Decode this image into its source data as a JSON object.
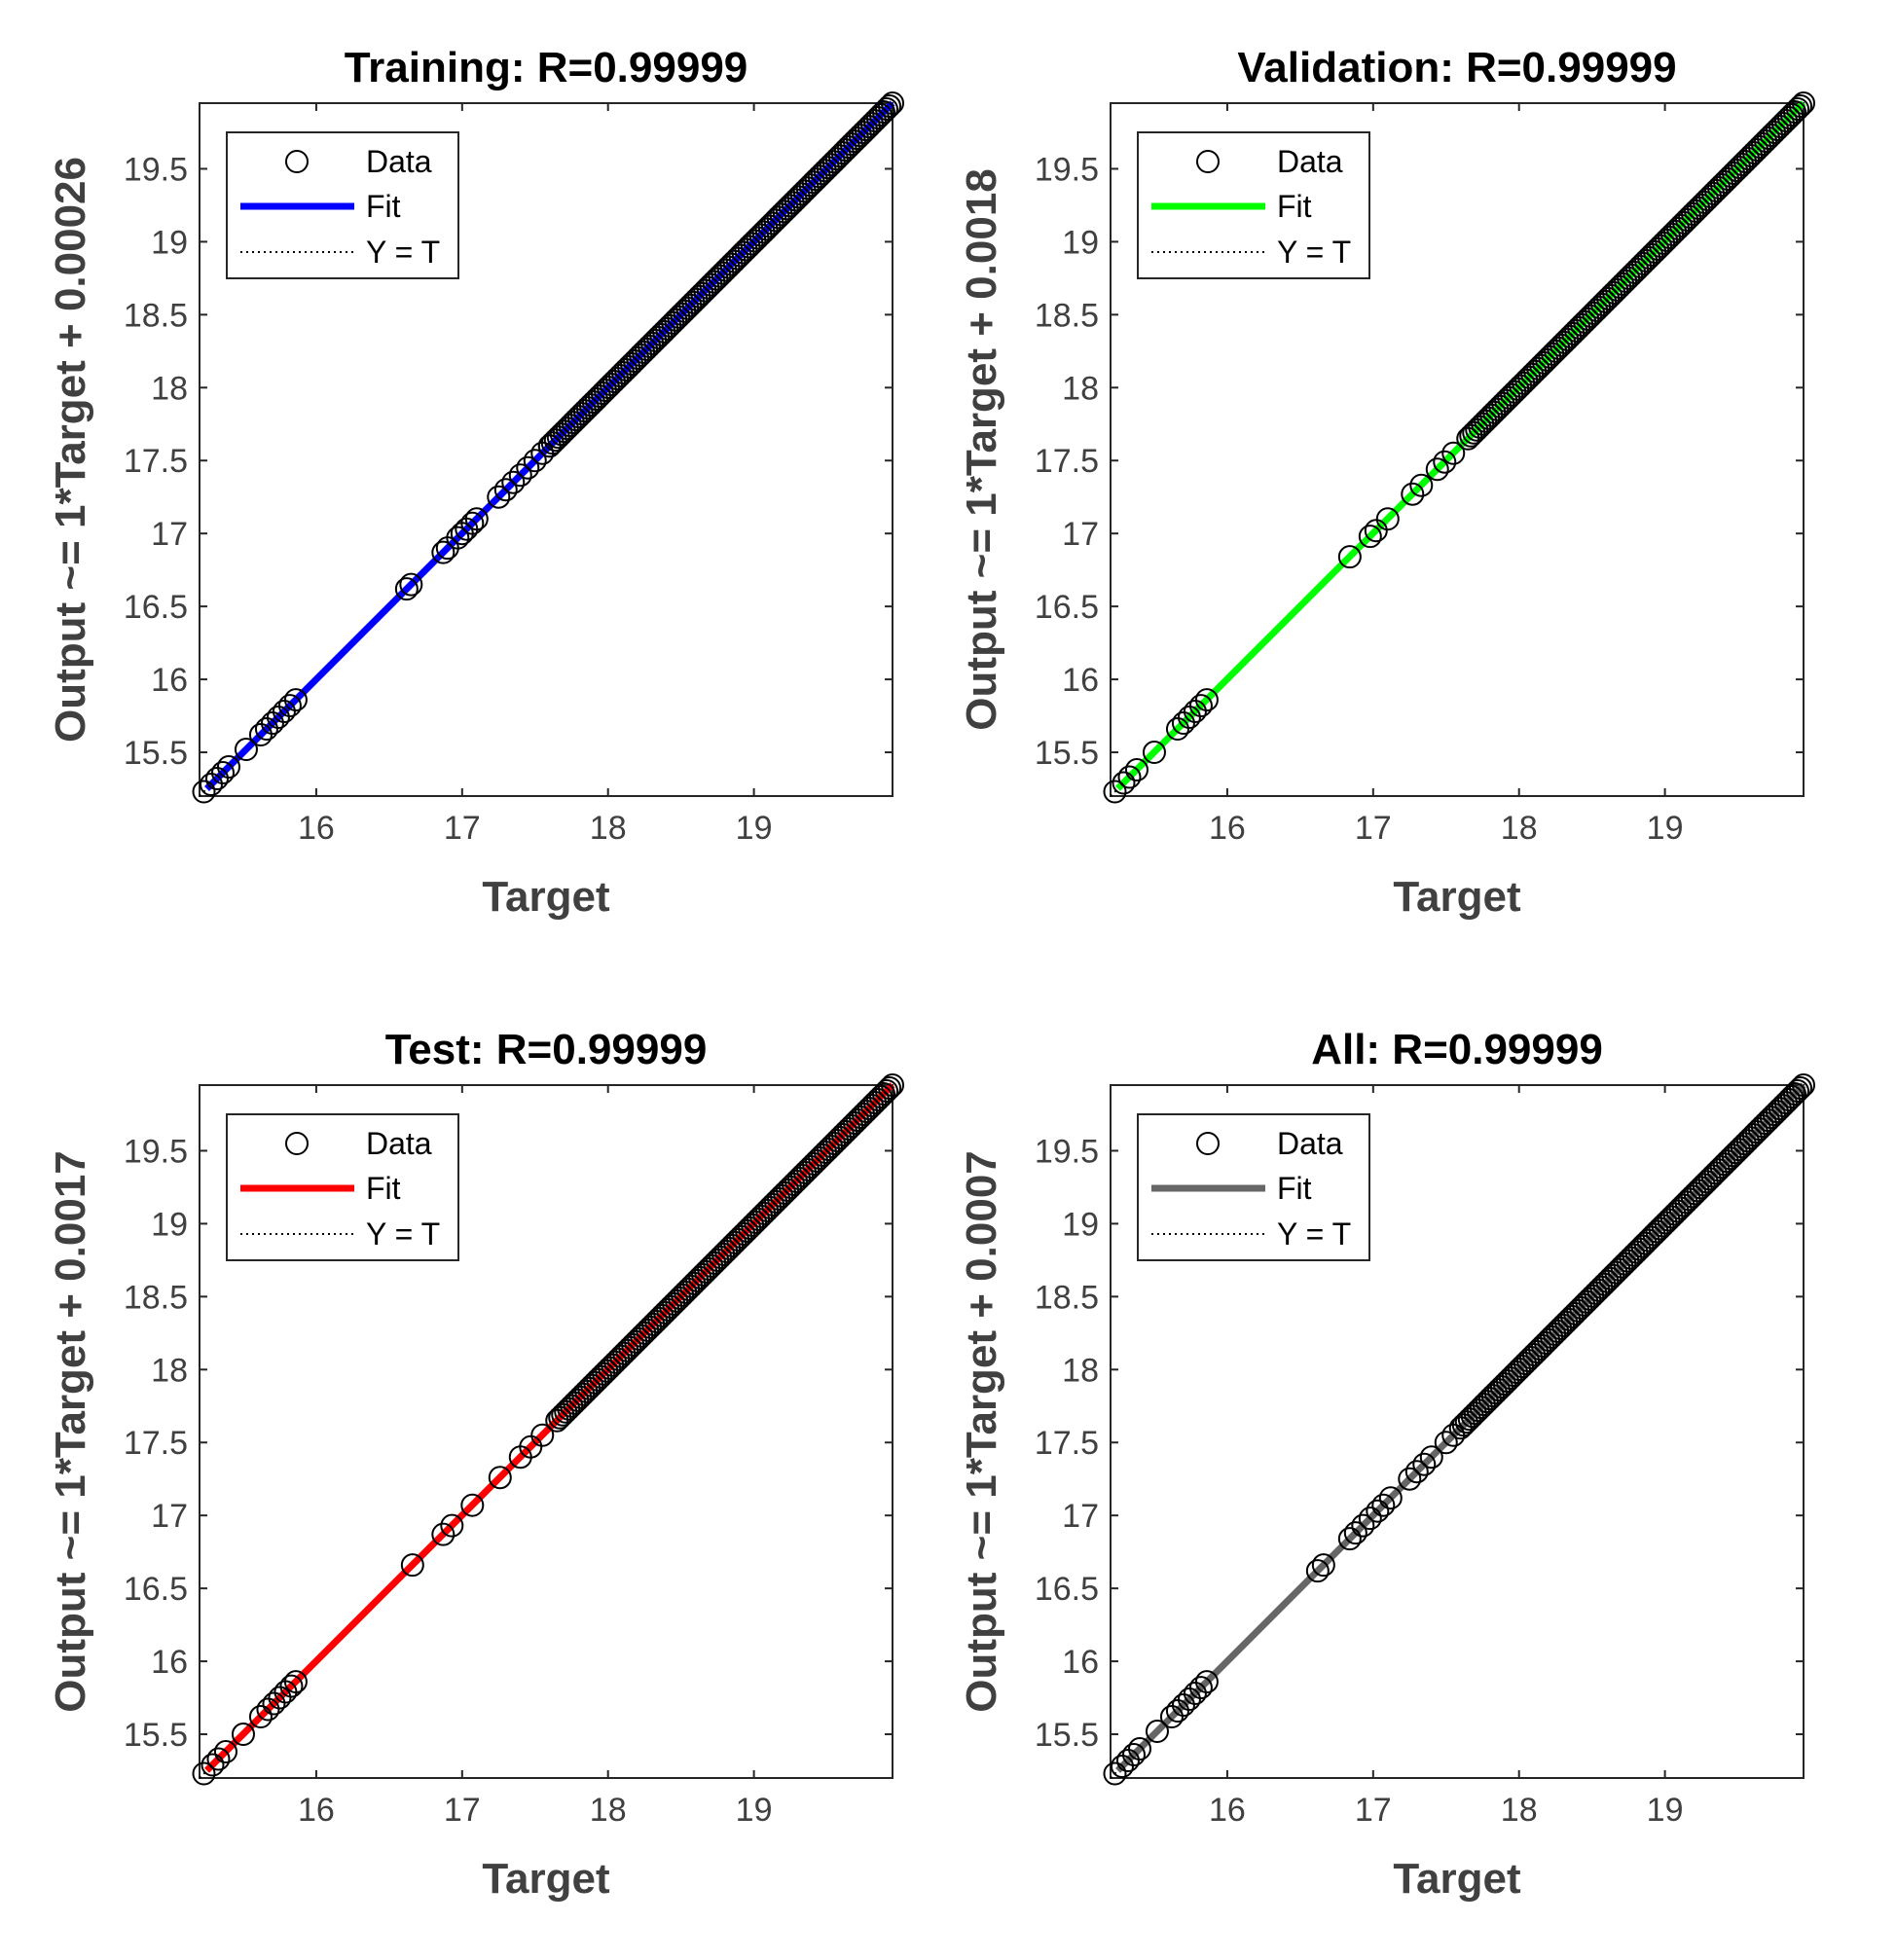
{
  "chart_data": [
    {
      "type": "scatter",
      "title": "Training: R=0.99999",
      "xlabel": "Target",
      "ylabel": "Output ~= 1*Target + 0.00026",
      "xlim": [
        15.2,
        19.95
      ],
      "ylim": [
        15.2,
        19.95
      ],
      "xticks": [
        16,
        17,
        18,
        19
      ],
      "yticks": [
        15.5,
        16,
        16.5,
        17,
        17.5,
        18,
        18.5,
        19,
        19.5
      ],
      "fit_color": "#0000ff",
      "fit": {
        "slope": 1,
        "intercept": 0.00026
      },
      "legend": {
        "position": "top-left",
        "entries": [
          "Data",
          "Fit",
          "Y = T"
        ]
      },
      "grid": false,
      "x": [
        15.23,
        15.28,
        15.32,
        15.36,
        15.4,
        15.52,
        15.62,
        15.66,
        15.7,
        15.74,
        15.78,
        15.82,
        15.86,
        16.62,
        16.65,
        16.87,
        16.9,
        16.97,
        17.0,
        17.03,
        17.07,
        17.1,
        17.25,
        17.3,
        17.35,
        17.4,
        17.45,
        17.5,
        17.55,
        17.6
      ],
      "y": [
        15.23,
        15.28,
        15.32,
        15.36,
        15.4,
        15.52,
        15.62,
        15.66,
        15.7,
        15.74,
        15.78,
        15.82,
        15.86,
        16.62,
        16.65,
        16.87,
        16.9,
        16.97,
        17.0,
        17.03,
        17.07,
        17.1,
        17.25,
        17.3,
        17.35,
        17.4,
        17.45,
        17.5,
        17.55,
        17.6
      ],
      "dense_range": [
        17.6,
        19.95
      ]
    },
    {
      "type": "scatter",
      "title": "Validation: R=0.99999",
      "xlabel": "Target",
      "ylabel": "Output ~= 1*Target + 0.0018",
      "xlim": [
        15.2,
        19.95
      ],
      "ylim": [
        15.2,
        19.95
      ],
      "xticks": [
        16,
        17,
        18,
        19
      ],
      "yticks": [
        15.5,
        16,
        16.5,
        17,
        17.5,
        18,
        18.5,
        19,
        19.5
      ],
      "fit_color": "#00ff00",
      "fit": {
        "slope": 1,
        "intercept": 0.0018
      },
      "legend": {
        "position": "top-left",
        "entries": [
          "Data",
          "Fit",
          "Y = T"
        ]
      },
      "grid": false,
      "x": [
        15.23,
        15.29,
        15.33,
        15.38,
        15.5,
        15.66,
        15.7,
        15.74,
        15.78,
        15.82,
        15.86,
        16.84,
        16.98,
        17.02,
        17.1,
        17.27,
        17.33,
        17.44,
        17.49,
        17.55
      ],
      "y": [
        15.23,
        15.29,
        15.33,
        15.38,
        15.5,
        15.66,
        15.7,
        15.74,
        15.78,
        15.82,
        15.86,
        16.84,
        16.98,
        17.02,
        17.1,
        17.27,
        17.33,
        17.44,
        17.49,
        17.55
      ],
      "dense_range": [
        17.65,
        19.95
      ]
    },
    {
      "type": "scatter",
      "title": "Test: R=0.99999",
      "xlabel": "Target",
      "ylabel": "Output ~= 1*Target + 0.0017",
      "xlim": [
        15.2,
        19.95
      ],
      "ylim": [
        15.2,
        19.95
      ],
      "xticks": [
        16,
        17,
        18,
        19
      ],
      "yticks": [
        15.5,
        16,
        16.5,
        17,
        17.5,
        18,
        18.5,
        19,
        19.5
      ],
      "fit_color": "#ff0000",
      "fit": {
        "slope": 1,
        "intercept": 0.0017
      },
      "legend": {
        "position": "top-left",
        "entries": [
          "Data",
          "Fit",
          "Y = T"
        ]
      },
      "grid": false,
      "x": [
        15.23,
        15.29,
        15.33,
        15.38,
        15.5,
        15.62,
        15.67,
        15.71,
        15.75,
        15.79,
        15.83,
        15.86,
        16.66,
        16.87,
        16.93,
        17.07,
        17.26,
        17.4,
        17.47,
        17.55
      ],
      "y": [
        15.23,
        15.29,
        15.33,
        15.38,
        15.5,
        15.62,
        15.67,
        15.71,
        15.75,
        15.79,
        15.83,
        15.86,
        16.66,
        16.87,
        16.93,
        17.07,
        17.26,
        17.4,
        17.47,
        17.55
      ],
      "dense_range": [
        17.65,
        19.95
      ]
    },
    {
      "type": "scatter",
      "title": "All: R=0.99999",
      "xlabel": "Target",
      "ylabel": "Output ~= 1*Target + 0.0007",
      "xlim": [
        15.2,
        19.95
      ],
      "ylim": [
        15.2,
        19.95
      ],
      "xticks": [
        16,
        17,
        18,
        19
      ],
      "yticks": [
        15.5,
        16,
        16.5,
        17,
        17.5,
        18,
        18.5,
        19,
        19.5
      ],
      "fit_color": "#666666",
      "fit": {
        "slope": 1,
        "intercept": 0.0007
      },
      "legend": {
        "position": "top-left",
        "entries": [
          "Data",
          "Fit",
          "Y = T"
        ]
      },
      "grid": false,
      "x": [
        15.23,
        15.28,
        15.32,
        15.36,
        15.4,
        15.52,
        15.62,
        15.66,
        15.7,
        15.74,
        15.78,
        15.82,
        15.86,
        16.62,
        16.66,
        16.84,
        16.88,
        16.93,
        16.98,
        17.03,
        17.07,
        17.12,
        17.25,
        17.3,
        17.35,
        17.4,
        17.5,
        17.55
      ],
      "y": [
        15.23,
        15.28,
        15.32,
        15.36,
        15.4,
        15.52,
        15.62,
        15.66,
        15.7,
        15.74,
        15.78,
        15.82,
        15.86,
        16.62,
        16.66,
        16.84,
        16.88,
        16.93,
        16.98,
        17.03,
        17.07,
        17.12,
        17.25,
        17.3,
        17.35,
        17.4,
        17.5,
        17.55
      ],
      "dense_range": [
        17.6,
        19.95
      ]
    }
  ]
}
